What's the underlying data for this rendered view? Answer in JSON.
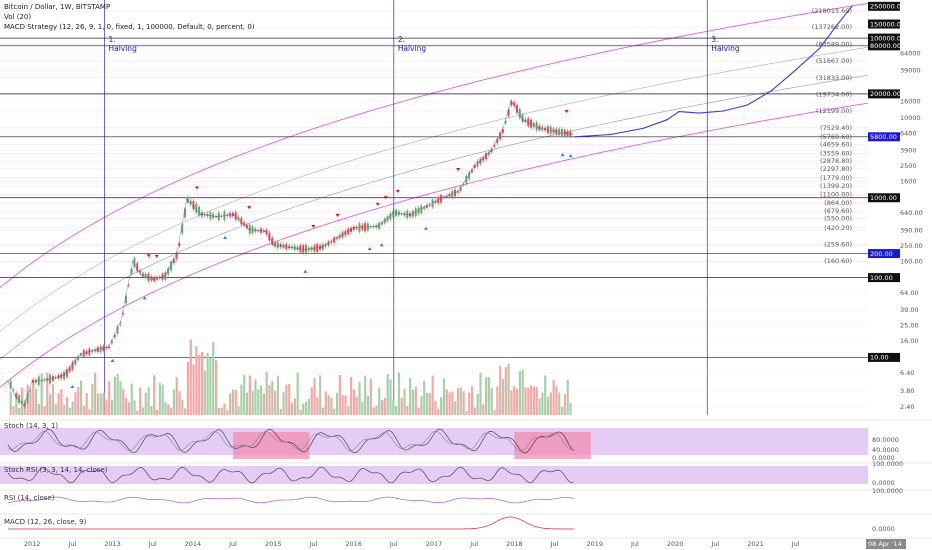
{
  "header": {
    "title": "Bitcoin / Dollar, 1W, BITSTAMP",
    "volume": "Vol (20)",
    "strategy": "MACD Strategy (12, 26, 9, 1, 0, fixed, 1, 100000, Default, 0, percent, 0)"
  },
  "indicators": {
    "stoch": "Stoch (14, 3, 1)",
    "stoch_rsi": "Stoch RSI (3, 3, 14, 14, close)",
    "rsi": "RSI (14, close)",
    "macd": "MACD (12, 26, close, 9)"
  },
  "colors": {
    "up": "#6aa66a",
    "down": "#d9534f",
    "channel_pink": "#e060e0",
    "channel_blue": "#8f8fd8",
    "projection": "#3a3ad0",
    "level_line": "#222222",
    "halving_line": "#3030b0",
    "badge": "#1a1ad0",
    "stoch_band": "#e4ccf4",
    "stoch_zone": "#f28cb0",
    "volume_up": "#a8cfa8",
    "volume_down": "#f0a8a8"
  },
  "halvings": [
    {
      "label1": "1.",
      "label2": "Halving",
      "year": 2012.9
    },
    {
      "label1": "2.",
      "label2": "Halving",
      "year": 2016.5
    },
    {
      "label1": "3.",
      "label2": "Halving",
      "year": 2020.4
    }
  ],
  "chart_data": {
    "type": "line",
    "log_scale": true,
    "x_axis_labels": [
      "2012",
      "Jul",
      "2013",
      "Jul",
      "2014",
      "Jul",
      "2015",
      "Jul",
      "2016",
      "Jul",
      "2017",
      "Jul",
      "2018",
      "Jul",
      "2019",
      "Jul",
      "2020",
      "Jul",
      "2021",
      "Jul"
    ],
    "x_axis_years": [
      2012.0,
      2012.5,
      2013.0,
      2013.5,
      2014.0,
      2014.5,
      2015.0,
      2015.5,
      2016.0,
      2016.5,
      2017.0,
      2017.5,
      2018.0,
      2018.5,
      2019.0,
      2019.5,
      2020.0,
      2020.5,
      2021.0,
      2021.5
    ],
    "x_range": [
      2011.6,
      2022.4
    ],
    "price_series": {
      "x": [
        2011.7,
        2011.8,
        2011.9,
        2012.0,
        2012.2,
        2012.4,
        2012.6,
        2012.8,
        2012.95,
        2013.1,
        2013.25,
        2013.35,
        2013.5,
        2013.65,
        2013.8,
        2013.92,
        2014.0,
        2014.1,
        2014.3,
        2014.5,
        2014.7,
        2014.9,
        2015.0,
        2015.2,
        2015.4,
        2015.6,
        2015.8,
        2016.0,
        2016.3,
        2016.5,
        2016.7,
        2016.9,
        2017.1,
        2017.3,
        2017.5,
        2017.7,
        2017.85,
        2017.96,
        2018.1,
        2018.3,
        2018.5,
        2018.65,
        2018.72
      ],
      "y": [
        5,
        3.2,
        2.5,
        5,
        5.3,
        6,
        11,
        12.5,
        13.5,
        28,
        160,
        110,
        95,
        105,
        200,
        950,
        800,
        620,
        580,
        620,
        400,
        380,
        260,
        240,
        225,
        240,
        320,
        420,
        440,
        650,
        610,
        780,
        1000,
        1200,
        2500,
        3800,
        7000,
        16500,
        9500,
        7500,
        6800,
        6400,
        6300
      ]
    },
    "projection_series": {
      "x": [
        2018.75,
        2019.2,
        2019.6,
        2019.9,
        2020.05,
        2020.3,
        2020.6,
        2020.9,
        2021.2,
        2021.5,
        2021.8,
        2022.0,
        2022.2
      ],
      "y": [
        5800,
        6200,
        7400,
        9500,
        12000,
        11500,
        12200,
        14500,
        22000,
        40000,
        75000,
        140000,
        250000
      ]
    },
    "price_labels": [
      "218015.60",
      "137262.00",
      "83589.00",
      "51667.00",
      "31833.00",
      "19734.00",
      "12199.00",
      "7529.40",
      "5769.60",
      "4659.60",
      "3559.60",
      "2878.80",
      "2297.80",
      "1779.00",
      "1399.20",
      "1100.00",
      "864.00",
      "679.60",
      "550.00",
      "420.20",
      "259.60",
      "160.60"
    ],
    "price_label_values": [
      218015.6,
      137262,
      83589,
      51667,
      31833,
      19734,
      12199,
      7529.4,
      5769.6,
      4659.6,
      3559.6,
      2878.8,
      2297.8,
      1779,
      1399.2,
      1100,
      864,
      679.6,
      550,
      420.2,
      259.6,
      160.6
    ],
    "axis_ticks": [
      "250000.00",
      "150000.00",
      "100000.00",
      "80000.00",
      "20000.00",
      "5800.00",
      "1000.00",
      "200.00",
      "100.00",
      "10.00"
    ],
    "axis_tick_values": [
      250000,
      150000,
      100000,
      80000,
      20000,
      5800,
      1000,
      200,
      100,
      10
    ],
    "scale_labels": [
      "64000",
      "39000",
      "16000",
      "10000",
      "6400",
      "3900",
      "2500",
      "1600",
      "640.00",
      "390.00",
      "250.00",
      "160.00",
      "64.00",
      "39.00",
      "25.00",
      "16.00",
      "6.40",
      "3.80",
      "2.40"
    ],
    "scale_label_values": [
      64000,
      39000,
      16000,
      10000,
      6400,
      3900,
      2500,
      1600,
      640,
      390,
      250,
      160,
      64,
      39,
      25,
      16,
      6.4,
      3.8,
      2.4
    ],
    "stoch_ticks": [
      "80.0000",
      "40.0000",
      "0.0000"
    ],
    "stoch_rsi_ticks": [
      "100.0000",
      "0.0000"
    ],
    "rsi_ticks": [
      "100.0000"
    ],
    "macd_ticks": [
      "0.0000"
    ],
    "date_badge": "08 Apr '14"
  }
}
